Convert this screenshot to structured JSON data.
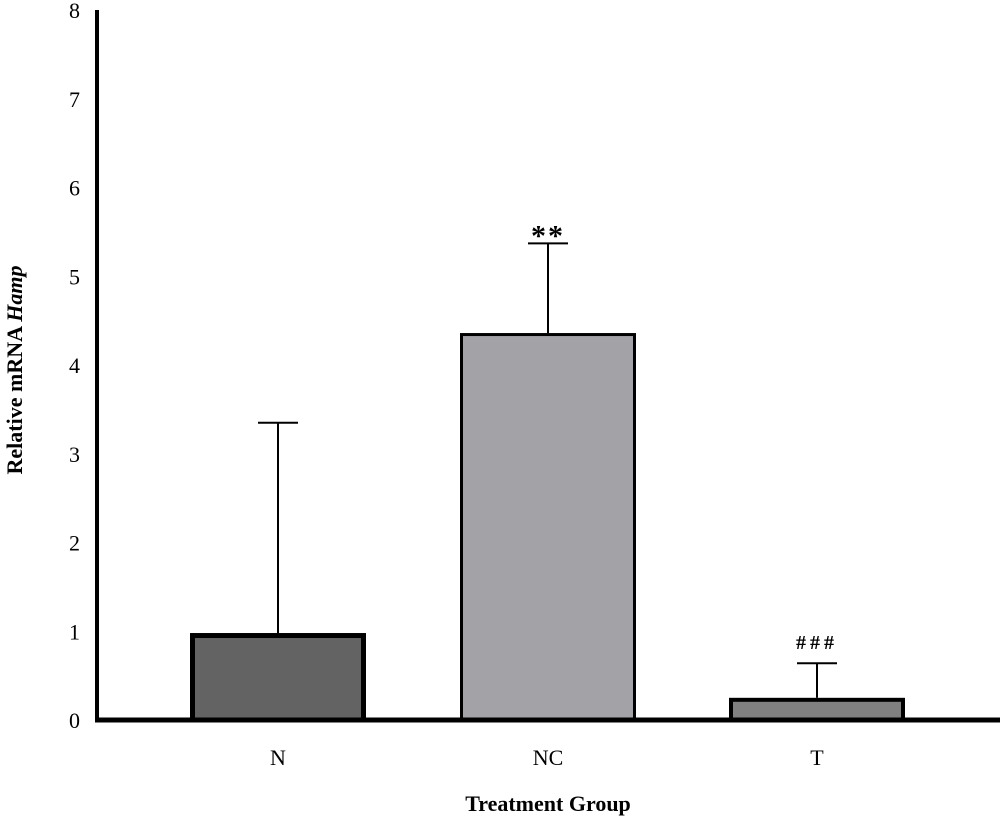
{
  "chart_data": {
    "type": "bar",
    "title": "",
    "xlabel": "Treatment Group",
    "ylabel_prefix": "Relative mRNA ",
    "ylabel_italic": "Hamp",
    "ylim": [
      0,
      8
    ],
    "yticks": [
      "0",
      "1",
      "2",
      "3",
      "4",
      "5",
      "6",
      "7",
      "8"
    ],
    "grid": false,
    "categories": [
      "N",
      "NC",
      "T"
    ],
    "values": [
      0.98,
      4.36,
      0.25
    ],
    "error_upper": [
      3.35,
      5.37,
      0.64
    ],
    "annotations": [
      "",
      "**",
      "###"
    ],
    "colors": [
      "#636363",
      "#a3a2a7",
      "#808080"
    ]
  }
}
